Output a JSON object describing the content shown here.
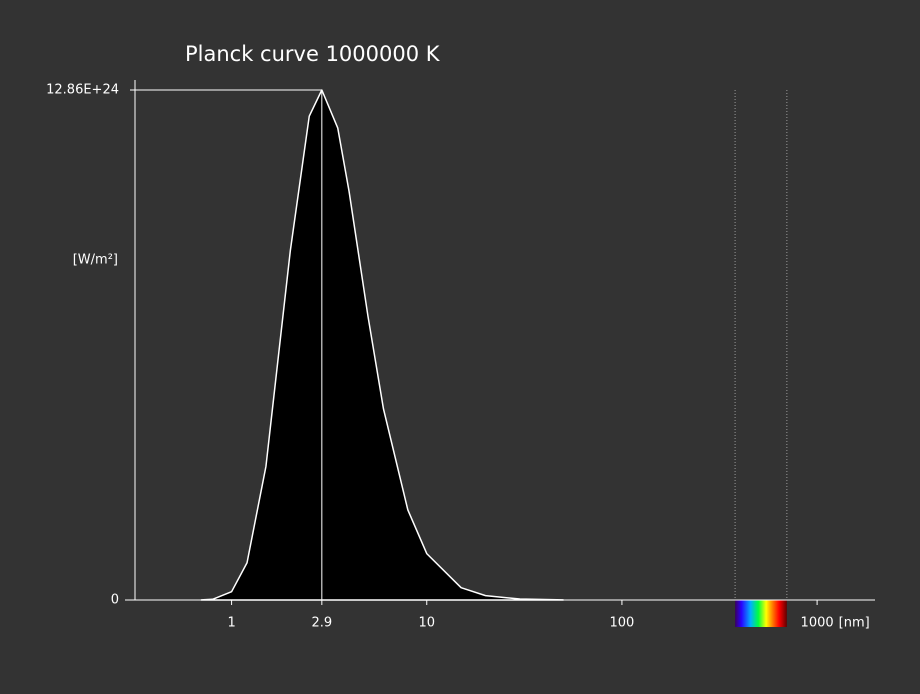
{
  "chart_data": {
    "type": "area",
    "title": "Planck curve 1000000 K",
    "y_label": "[W/m²]",
    "x_label": "[nm]",
    "log_x": true,
    "x": [
      0.7,
      0.8,
      1,
      1.2,
      1.5,
      2,
      2.5,
      2.9,
      3.5,
      4,
      5,
      6,
      8,
      10,
      15,
      20,
      30,
      50
    ],
    "values": [
      2.7e+21,
      1.8e+22,
      2.1e+23,
      9.4e+23,
      3.37e+24,
      8.81e+24,
      1.22e+25,
      1.286e+25,
      1.19e+25,
      1.03e+25,
      7.15e+24,
      4.82e+24,
      2.27e+24,
      1.17e+24,
      3.1e+23,
      1.1e+23,
      2.5e+22,
      3e+21
    ],
    "fill": "#000000",
    "color": "#ffffff",
    "peak_x": 2.9,
    "peak_y": 1.286e+25,
    "visible_range": [
      380,
      700
    ],
    "xlim": [
      0.32,
      1980
    ],
    "xticks": [
      1,
      2.9,
      10,
      100,
      1000
    ],
    "ylim": [
      0,
      1.286e+25
    ],
    "yticks": [
      0,
      {
        "value": 1.286e+25,
        "label": "12.86E+24"
      }
    ]
  }
}
